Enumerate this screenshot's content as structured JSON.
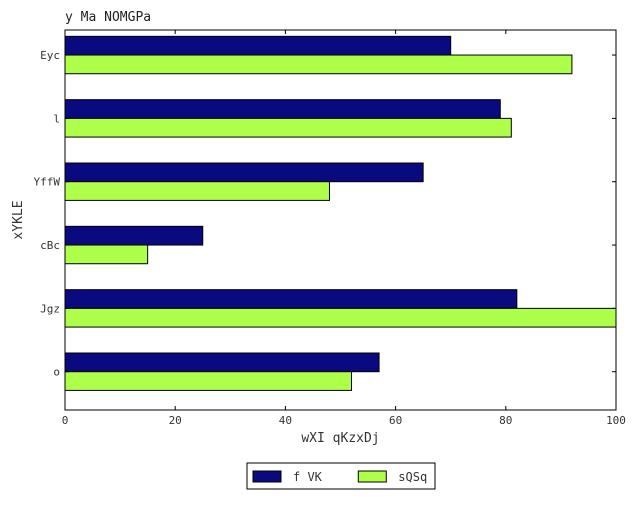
{
  "chart_data": {
    "type": "bar",
    "orientation": "horizontal",
    "title": "y Ma NOMGPa",
    "xlabel": "wXI qKzxDj",
    "ylabel": "xYKLE",
    "categories": [
      "o",
      "Jgz",
      "cBc",
      "YffW",
      "l",
      "Eyc"
    ],
    "series": [
      {
        "name": "f VK",
        "color": "#0a0a80",
        "values": [
          57,
          82,
          25,
          65,
          79,
          70
        ]
      },
      {
        "name": "sQSq",
        "color": "#adff4a",
        "values": [
          52,
          100,
          15,
          48,
          81,
          92
        ]
      }
    ],
    "xlim": [
      0,
      100
    ],
    "xticks": [
      "0",
      "20",
      "40",
      "60",
      "80",
      "100"
    ],
    "grid": false,
    "legend_position": "bottom-center"
  }
}
